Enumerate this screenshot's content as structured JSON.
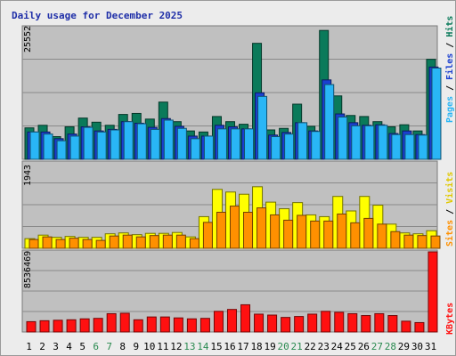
{
  "chart_data": [
    {
      "type": "bar",
      "title": "Daily usage for December 2025",
      "categories": [
        "1",
        "2",
        "3",
        "4",
        "5",
        "6",
        "7",
        "8",
        "9",
        "10",
        "11",
        "12",
        "13",
        "14",
        "15",
        "16",
        "17",
        "18",
        "19",
        "20",
        "21",
        "22",
        "23",
        "24",
        "25",
        "26",
        "27",
        "28",
        "29",
        "30",
        "31"
      ],
      "weekend_days": [
        "6",
        "7",
        "13",
        "14",
        "20",
        "21",
        "27",
        "28"
      ],
      "ymax_label": "25552",
      "ylim": [
        0,
        25552
      ],
      "grid": true,
      "series": [
        {
          "name": "Hits",
          "color": "#0a7a5a",
          "values": [
            6100,
            6600,
            4400,
            6300,
            8000,
            7200,
            6600,
            8700,
            8900,
            7800,
            11100,
            7300,
            5500,
            5300,
            8300,
            7300,
            6800,
            22500,
            5700,
            6000,
            10700,
            6400,
            25000,
            12300,
            8500,
            8300,
            7300,
            6300,
            6700,
            5500,
            19400
          ]
        },
        {
          "name": "Files",
          "color": "#1a3fd0",
          "values": [
            5300,
            5300,
            4000,
            4900,
            6300,
            5500,
            5800,
            7300,
            7000,
            6200,
            7900,
            6400,
            4500,
            4500,
            6600,
            6300,
            5900,
            12900,
            4700,
            5200,
            7100,
            5500,
            15400,
            8800,
            7100,
            6600,
            6700,
            5000,
            5500,
            4800,
            17900
          ]
        },
        {
          "name": "Pages",
          "color": "#29b6f6",
          "values": [
            5300,
            4900,
            3600,
            4500,
            6200,
            5300,
            5700,
            7300,
            6900,
            5800,
            7600,
            6000,
            4000,
            4500,
            5900,
            5900,
            5900,
            12200,
            4400,
            4900,
            7100,
            5400,
            14500,
            8200,
            6500,
            6500,
            6600,
            4800,
            4800,
            4700,
            17700
          ]
        }
      ]
    },
    {
      "type": "bar",
      "ymax_label": "1943",
      "ylim": [
        0,
        1943
      ],
      "grid": true,
      "series": [
        {
          "name": "Visits",
          "color": "#ffff00",
          "values": [
            220,
            300,
            250,
            270,
            250,
            250,
            330,
            350,
            310,
            340,
            340,
            360,
            260,
            720,
            1340,
            1280,
            1230,
            1400,
            1050,
            900,
            1040,
            760,
            720,
            1180,
            850,
            1180,
            980,
            550,
            350,
            330,
            400
          ]
        },
        {
          "name": "Sites",
          "color": "#ff9000",
          "values": [
            200,
            260,
            200,
            230,
            200,
            180,
            280,
            300,
            260,
            290,
            300,
            300,
            220,
            590,
            820,
            960,
            820,
            920,
            760,
            640,
            750,
            620,
            620,
            780,
            580,
            680,
            550,
            380,
            300,
            290,
            280
          ]
        }
      ]
    },
    {
      "type": "bar",
      "ymax_label": "8536469",
      "ylim": [
        0,
        8536469
      ],
      "grid": true,
      "series": [
        {
          "name": "KBytes",
          "color": "#ff1010",
          "values": [
            1100000,
            1200000,
            1250000,
            1300000,
            1400000,
            1450000,
            1950000,
            2000000,
            1300000,
            1600000,
            1600000,
            1500000,
            1400000,
            1450000,
            2200000,
            2400000,
            2900000,
            1900000,
            1800000,
            1550000,
            1650000,
            1900000,
            2200000,
            2100000,
            1950000,
            1750000,
            1950000,
            1750000,
            1150000,
            1000000,
            8536469
          ]
        }
      ]
    }
  ]
}
